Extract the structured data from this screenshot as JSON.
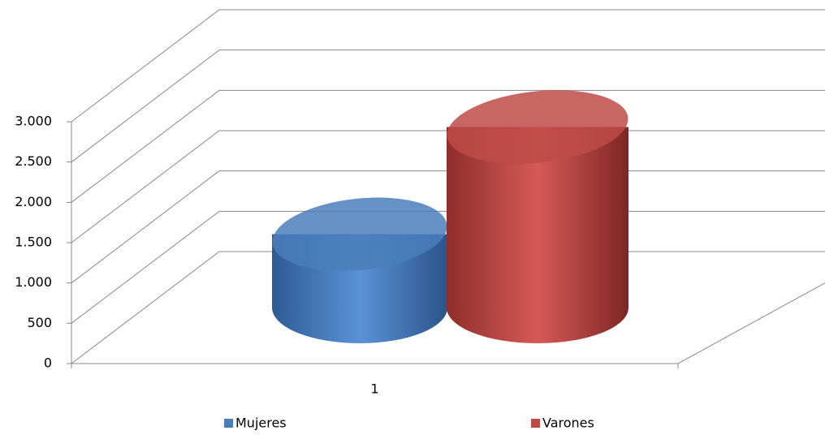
{
  "chart_data": {
    "type": "cylinder3d",
    "categories": [
      "1"
    ],
    "series": [
      {
        "name": "Mujeres",
        "color": "#4a7ebb",
        "values": [
          910
        ]
      },
      {
        "name": "Varones",
        "color": "#be4b48",
        "values": [
          2240
        ]
      }
    ],
    "ylim": [
      0,
      3000
    ],
    "yticks": [
      0,
      500,
      {
        "value": 1000,
        "label": "1.000"
      },
      {
        "value": 1500,
        "label": "1.500"
      },
      {
        "value": 2000,
        "label": "2.000"
      },
      {
        "value": 2500,
        "label": "2.500"
      },
      {
        "value": 3000,
        "label": "3.000"
      }
    ],
    "grid": true,
    "legend": "bottom"
  }
}
